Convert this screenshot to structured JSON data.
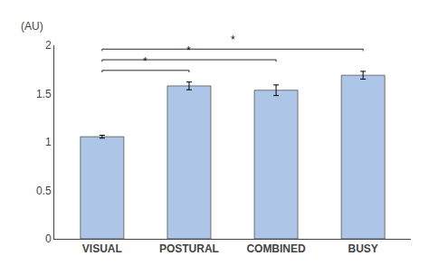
{
  "chart_data": {
    "type": "bar",
    "ylabel": "(AU)",
    "categories": [
      "VISUAL",
      "POSTURAL",
      "COMBINED",
      "BUSY"
    ],
    "values": [
      1.055,
      1.58,
      1.535,
      1.69
    ],
    "errors": [
      0.015,
      0.04,
      0.055,
      0.04
    ],
    "color": "#adc6e8",
    "ylim": [
      0,
      2.0
    ],
    "yticks": [
      0,
      0.5,
      1.0,
      1.5,
      2.0
    ],
    "grid": false,
    "significance_brackets": [
      {
        "from": "VISUAL",
        "to": "POSTURAL",
        "y": 1.72,
        "label": "*",
        "color": "#111111"
      },
      {
        "from": "VISUAL",
        "to": "COMBINED",
        "y": 1.83,
        "label": "*",
        "color": "#111111"
      },
      {
        "from": "VISUAL",
        "to": "BUSY",
        "y": 1.94,
        "label": "*",
        "color": "#111111"
      }
    ]
  }
}
